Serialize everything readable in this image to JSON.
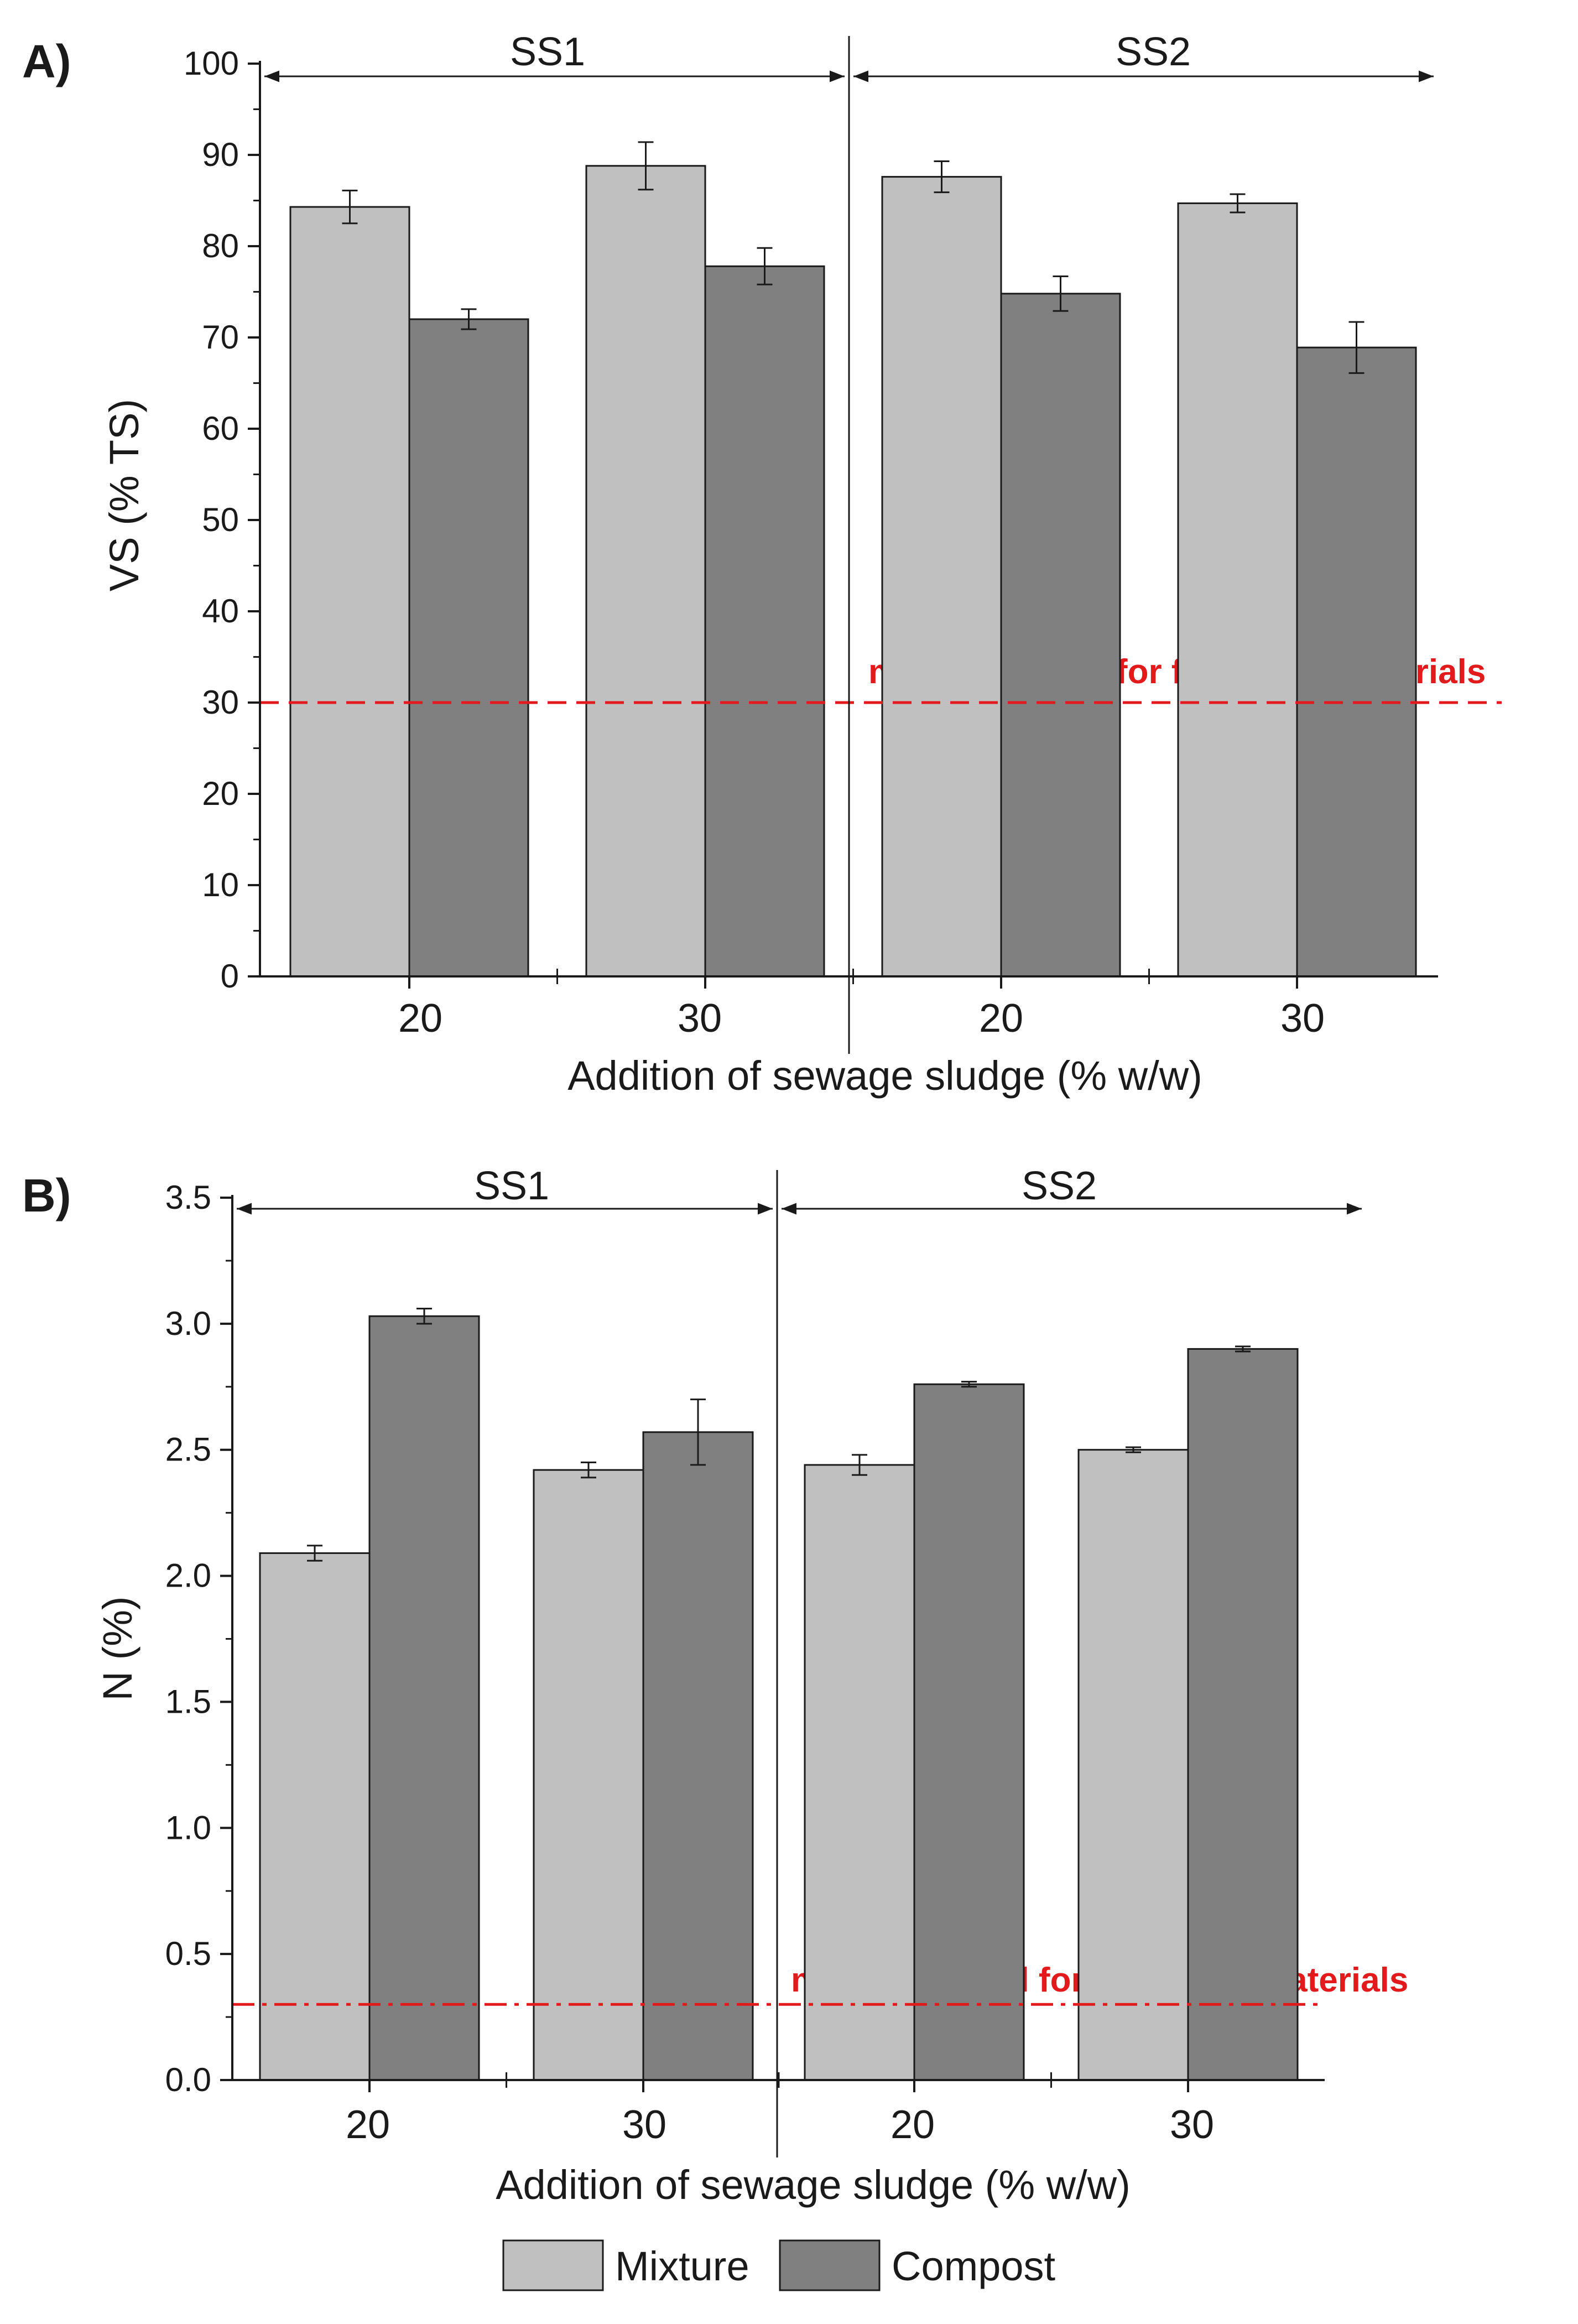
{
  "colors": {
    "mixture": "#c0c0c0",
    "compost": "#808080",
    "reference": "#e31a1c",
    "axis": "#1a1a1a"
  },
  "legend": {
    "mixture": "Mixture",
    "compost": "Compost"
  },
  "chart_data": [
    {
      "type": "bar",
      "panel": "A)",
      "title": "",
      "xlabel": "Addition of sewage sludge (% w/w)",
      "ylabel": "VS (% TS)",
      "ylim": [
        0,
        100
      ],
      "yticks": [
        0,
        10,
        20,
        30,
        40,
        50,
        60,
        70,
        80,
        90,
        100
      ],
      "groups": [
        "SS1",
        "SS2"
      ],
      "categories": [
        "20",
        "30",
        "20",
        "30"
      ],
      "series": [
        {
          "name": "Mixture",
          "values": [
            84.3,
            88.8,
            87.6,
            84.7
          ],
          "errors": [
            1.8,
            2.6,
            1.7,
            1.0
          ]
        },
        {
          "name": "Compost",
          "values": [
            72.0,
            77.8,
            74.8,
            68.9
          ],
          "errors": [
            1.1,
            2.0,
            1.9,
            2.8
          ]
        }
      ],
      "reference_line": {
        "value": 30,
        "label": "minimum level for fertilising materials",
        "style": "dashed"
      }
    },
    {
      "type": "bar",
      "panel": "B)",
      "title": "",
      "xlabel": "Addition of sewage sludge (% w/w)",
      "ylabel": "N (%)",
      "ylim": [
        0,
        3.5
      ],
      "yticks": [
        "0.0",
        "0.5",
        "1.0",
        "1.5",
        "2.0",
        "2.5",
        "3.0",
        "3.5"
      ],
      "groups": [
        "SS1",
        "SS2"
      ],
      "categories": [
        "20",
        "30",
        "20",
        "30"
      ],
      "series": [
        {
          "name": "Mixture",
          "values": [
            2.09,
            2.42,
            2.44,
            2.5
          ],
          "errors": [
            0.03,
            0.03,
            0.04,
            0.01
          ]
        },
        {
          "name": "Compost",
          "values": [
            3.03,
            2.57,
            2.76,
            2.9
          ],
          "errors": [
            0.03,
            0.13,
            0.01,
            0.01
          ]
        }
      ],
      "reference_line": {
        "value": 0.3,
        "label": "minimum level for fertilising materials",
        "style": "dashdot"
      }
    }
  ]
}
